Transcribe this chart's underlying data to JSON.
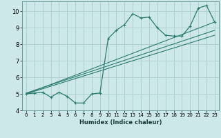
{
  "xlabel": "Humidex (Indice chaleur)",
  "bg_color": "#cce8e8",
  "grid_color": "#aacccc",
  "line_color": "#2d7a6e",
  "xlim": [
    -0.5,
    23.5
  ],
  "ylim": [
    4,
    10.6
  ],
  "xticks": [
    0,
    1,
    2,
    3,
    4,
    5,
    6,
    7,
    8,
    9,
    10,
    11,
    12,
    13,
    14,
    15,
    16,
    17,
    18,
    19,
    20,
    21,
    22,
    23
  ],
  "yticks": [
    4,
    5,
    6,
    7,
    8,
    9,
    10
  ],
  "line1_x": [
    0,
    1,
    2,
    3,
    4,
    5,
    6,
    7,
    8,
    9,
    10,
    11,
    12,
    13,
    14,
    15,
    16,
    17,
    18,
    19,
    20,
    21,
    22,
    23
  ],
  "line1_y": [
    5.0,
    5.05,
    5.1,
    4.8,
    5.1,
    4.85,
    4.45,
    4.45,
    5.0,
    5.05,
    8.35,
    8.85,
    9.2,
    9.85,
    9.6,
    9.65,
    9.0,
    8.55,
    8.5,
    8.5,
    9.1,
    10.2,
    10.35,
    9.35
  ],
  "line2_x": [
    0,
    23
  ],
  "line2_y": [
    5.0,
    8.55
  ],
  "line3_x": [
    0,
    23
  ],
  "line3_y": [
    5.05,
    8.85
  ],
  "line4_x": [
    0,
    23
  ],
  "line4_y": [
    5.0,
    9.35
  ]
}
